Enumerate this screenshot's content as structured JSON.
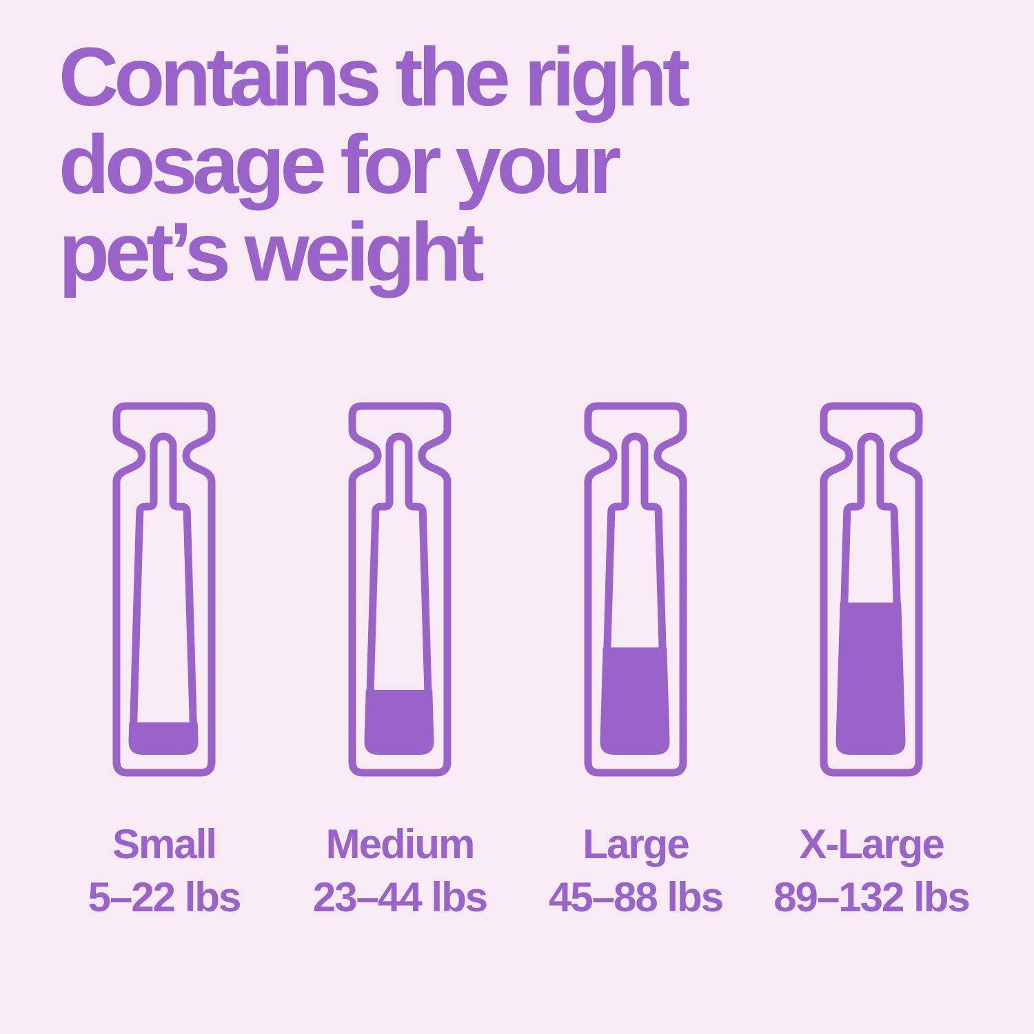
{
  "title": {
    "lines": [
      "Contains the right",
      "dosage for your",
      "pet’s weight"
    ]
  },
  "colors": {
    "background": "#F8EBF6",
    "purple": "#9A63C9"
  },
  "vials": [
    {
      "name": "Small",
      "weight_range": "5–22 lbs",
      "fill_percent": 13
    },
    {
      "name": "Medium",
      "weight_range": "23–44 lbs",
      "fill_percent": 26
    },
    {
      "name": "Large",
      "weight_range": "45–88 lbs",
      "fill_percent": 43
    },
    {
      "name": "X-Large",
      "weight_range": "89–132 lbs",
      "fill_percent": 61
    }
  ]
}
